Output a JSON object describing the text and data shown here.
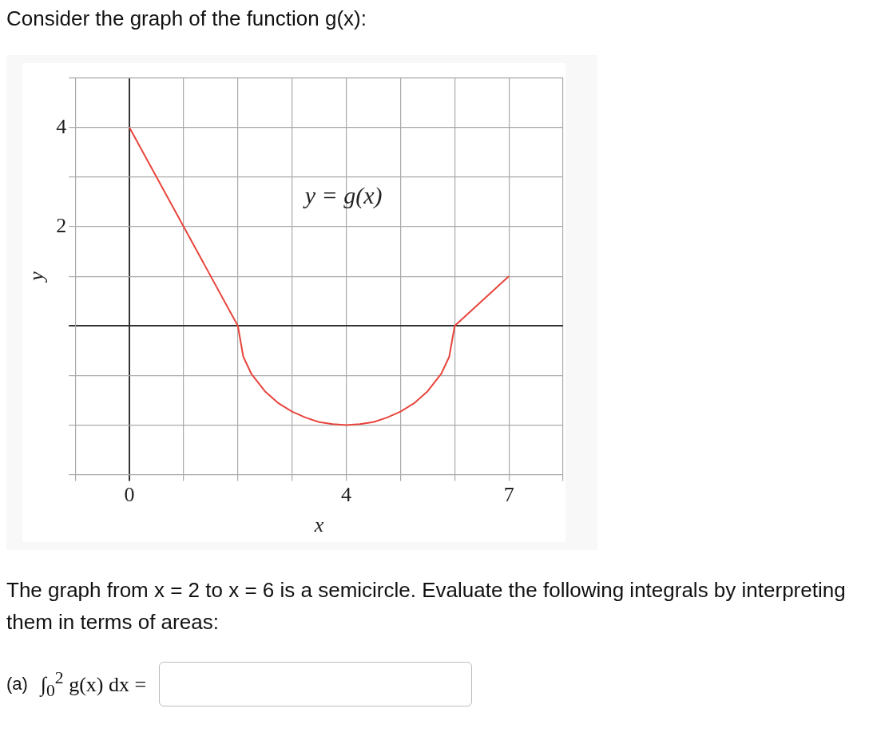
{
  "chart_data": {
    "type": "line",
    "title": "Consider the graph of the function g(x):",
    "xlabel": "x",
    "ylabel": "y",
    "x": [
      0,
      2,
      2.1,
      2.25,
      2.5,
      2.75,
      3,
      3.25,
      3.5,
      3.75,
      4,
      4.25,
      4.5,
      4.75,
      5,
      5.25,
      5.5,
      5.75,
      5.9,
      6,
      7
    ],
    "series": [
      {
        "color": "#e8453c",
        "values": [
          4,
          0,
          -0.62,
          -0.97,
          -1.32,
          -1.56,
          -1.73,
          -1.85,
          -1.94,
          -1.98,
          -2,
          -1.98,
          -1.94,
          -1.85,
          -1.73,
          -1.56,
          -1.32,
          -0.97,
          -0.62,
          0,
          1
        ]
      }
    ],
    "xlim": [
      -1,
      8
    ],
    "ylim": [
      -3,
      5
    ],
    "xticks": [
      {
        "value": -1,
        "label": null
      },
      0,
      {
        "value": 1,
        "label": null
      },
      {
        "value": 2,
        "label": null
      },
      {
        "value": 3,
        "label": null
      },
      4,
      {
        "value": 5,
        "label": null
      },
      {
        "value": 6,
        "label": null
      },
      7,
      {
        "value": 8,
        "label": null
      }
    ],
    "yticks": [
      {
        "value": -3,
        "label": null
      },
      {
        "value": -2,
        "label": null
      },
      {
        "value": -1,
        "label": null
      },
      {
        "value": 0,
        "label": null
      },
      {
        "value": 1,
        "label": null
      },
      2,
      {
        "value": 3,
        "label": null
      },
      4,
      {
        "value": 5,
        "label": null
      }
    ],
    "grid": true,
    "legend": false,
    "marker": "none",
    "line_style": "solid",
    "annotations": [
      "y = g(x)",
      "The graph from x = 2 to x = 6 is a semicircle. Evaluate the following integrals by interpreting them in terms of areas:",
      "(a)",
      "∫$_{0}$$^{2}$ g(x) dx ="
    ]
  }
}
